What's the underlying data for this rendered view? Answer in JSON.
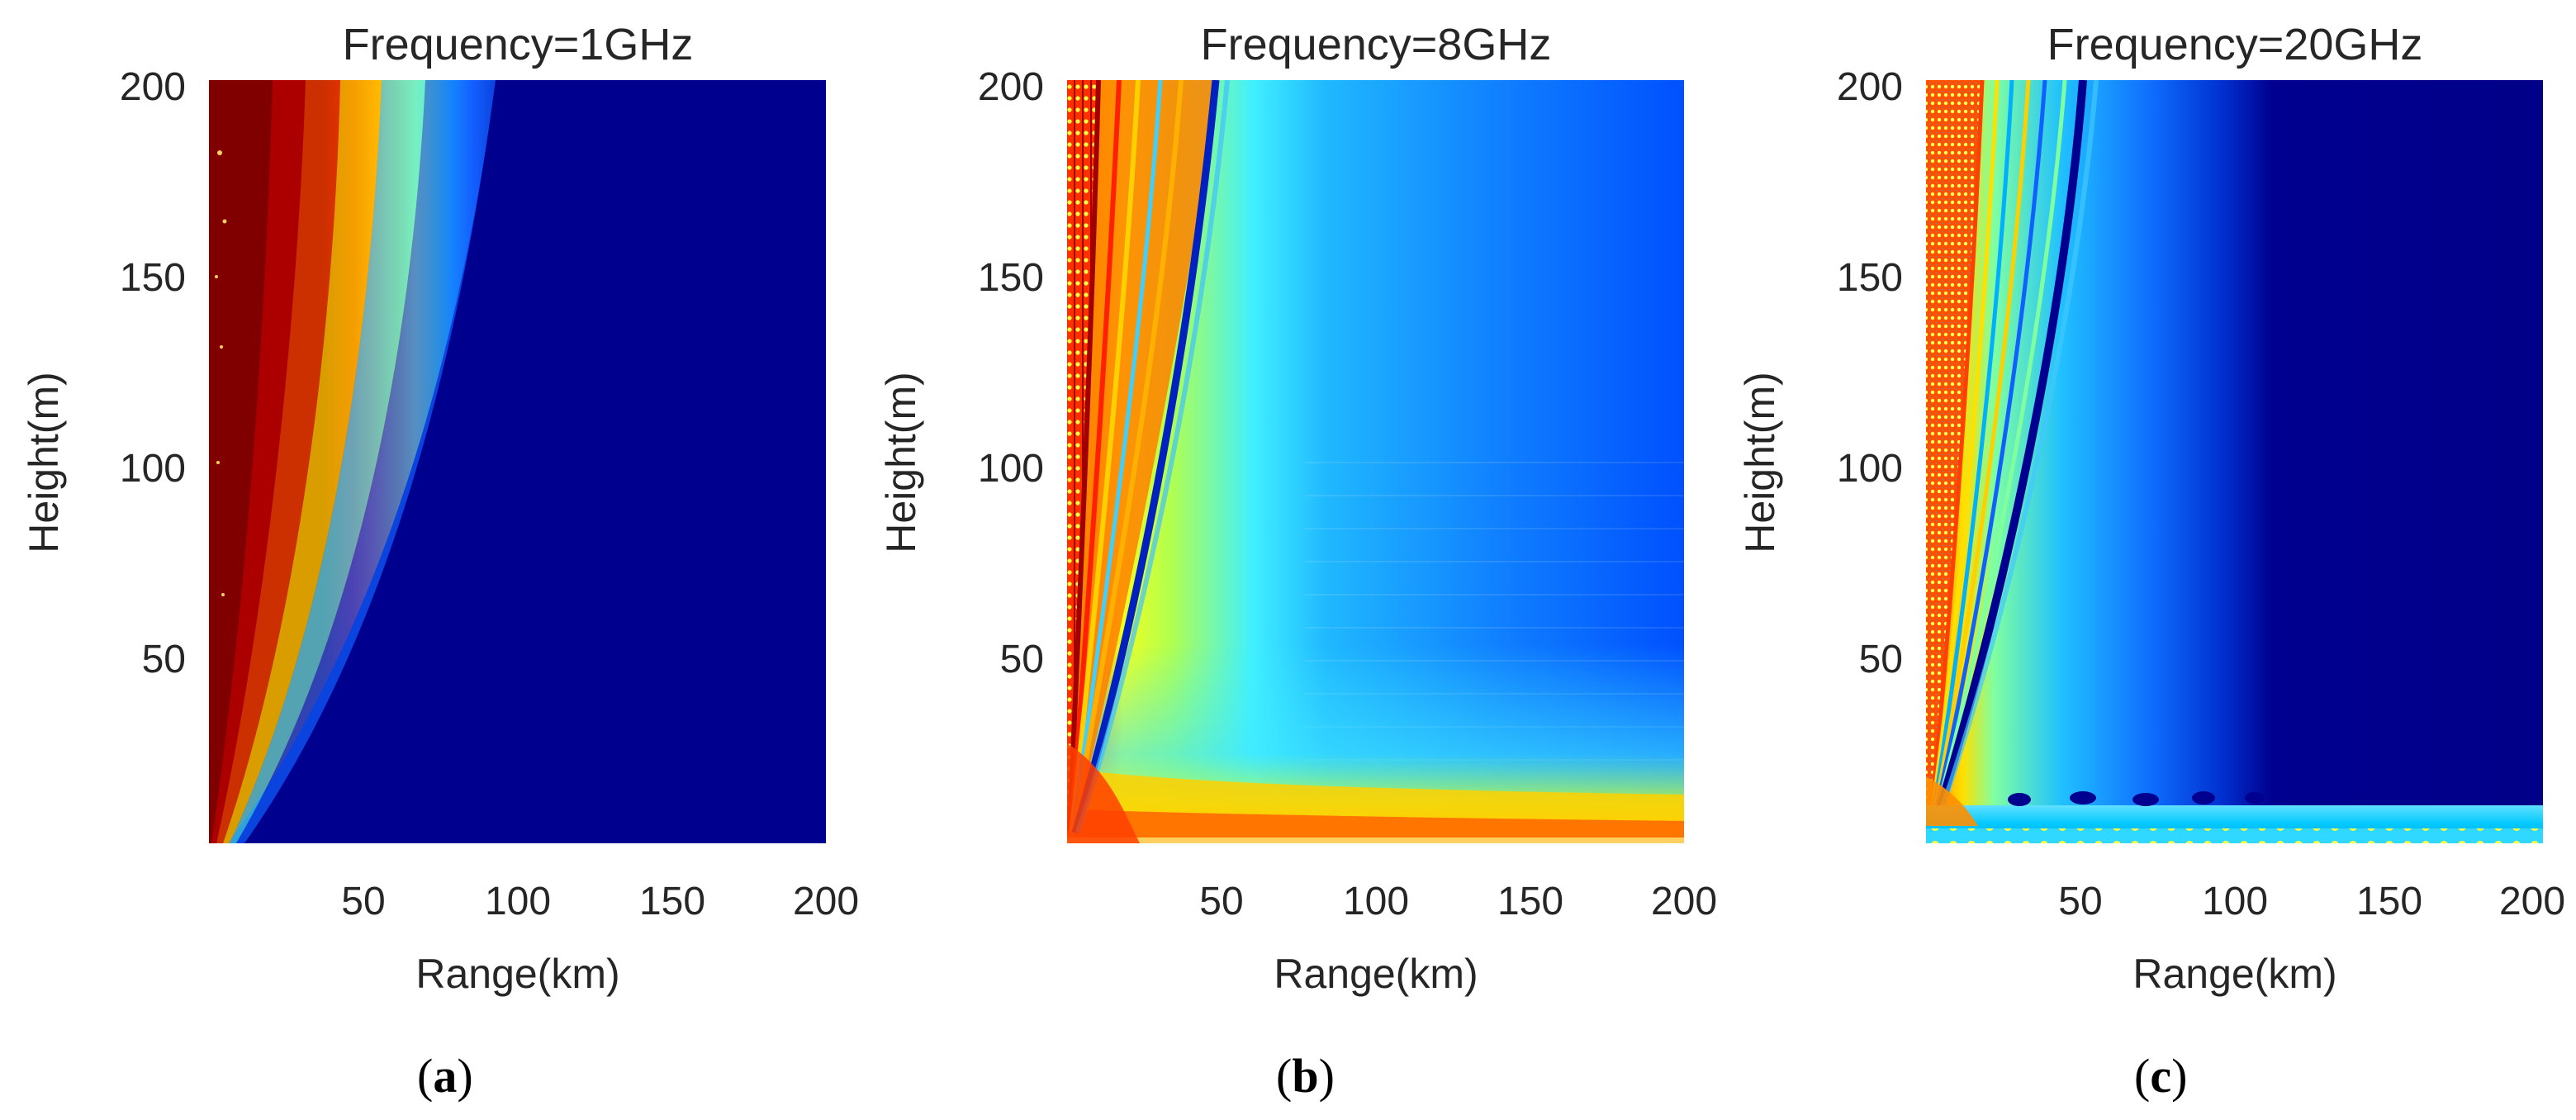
{
  "colors": {
    "text": "#262626",
    "jet_dark_blue": "#00008f",
    "jet_dark_red": "#800000",
    "jet_red": "#ff0000",
    "jet_yellow": "#ffff00",
    "jet_cyan": "#00ffff",
    "jet_blue": "#0000ff"
  },
  "chart_data": [
    {
      "type": "heatmap",
      "title": "Frequency=1GHz",
      "caption": "(a)",
      "caption_prefix": "(",
      "caption_letter": "a",
      "caption_suffix": ")",
      "xlabel": "Range(km)",
      "ylabel": "Height(m)",
      "xlim": [
        0,
        200
      ],
      "ylim": [
        0,
        200
      ],
      "xticks": [
        "50",
        "100",
        "150",
        "200"
      ],
      "yticks": [
        "50",
        "100",
        "150",
        "200"
      ],
      "colormap": "jet",
      "features": {
        "band_edges_bottom_km": [
          0.5,
          3,
          6,
          10,
          14
        ],
        "band_edges_top_km": [
          12,
          30,
          42,
          57,
          100
        ],
        "bands": [
          "dark-red",
          "red",
          "yellow",
          "cyan",
          "dark-blue"
        ]
      }
    },
    {
      "type": "heatmap",
      "title": "Frequency=8GHz",
      "caption": "(b)",
      "caption_prefix": "(",
      "caption_letter": "b",
      "caption_suffix": ")",
      "xlabel": "Range(km)",
      "ylabel": "Height(m)",
      "xlim": [
        0,
        200
      ],
      "ylim": [
        0,
        200
      ],
      "xticks": [
        "50",
        "100",
        "150",
        "200"
      ],
      "yticks": [
        "50",
        "100",
        "150",
        "200"
      ],
      "colormap": "jet",
      "features": {
        "interference_fringes_top_km": [
          8,
          18,
          28
        ],
        "null_line_top_km": 45,
        "null_line_bottom_km": 5,
        "surface_duct_height_m": 20,
        "far_field_color": "blue"
      }
    },
    {
      "type": "heatmap",
      "title": "Frequency=20GHz",
      "caption": "(c)",
      "caption_prefix": "(",
      "caption_letter": "c",
      "caption_suffix": ")",
      "xlabel": "Range(km)",
      "ylabel": "Height(m)",
      "xlim": [
        0,
        200
      ],
      "ylim": [
        0,
        200
      ],
      "xticks": [
        "50",
        "100",
        "150",
        "200"
      ],
      "yticks": [
        "50",
        "100",
        "150",
        "200"
      ],
      "colormap": "jet",
      "features": {
        "interference_fringes_top_km": [
          8,
          14,
          20,
          27,
          34
        ],
        "null_line_top_km": 40,
        "null_line_bottom_km": 4,
        "surface_duct_height_m": 15,
        "dark_region_start_km": 105
      }
    }
  ]
}
